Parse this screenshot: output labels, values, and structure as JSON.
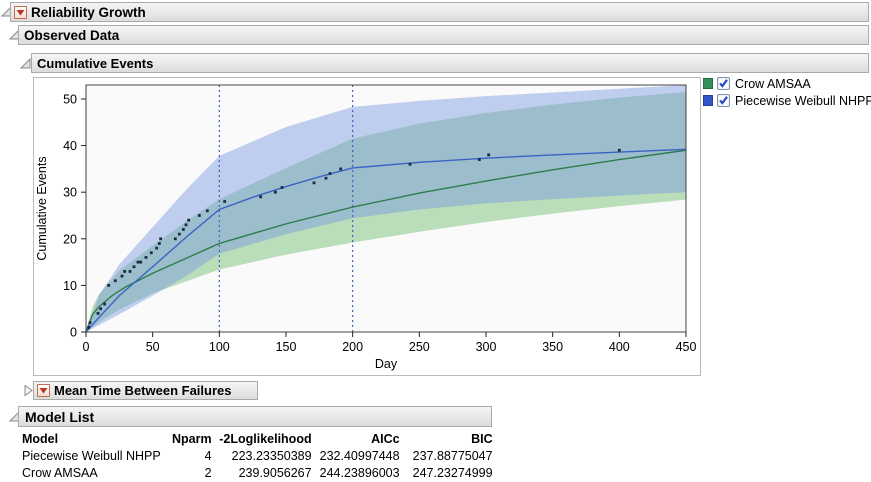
{
  "labels": {
    "reliability_growth": "Reliability Growth",
    "observed_data": "Observed Data",
    "cumulative_events": "Cumulative Events",
    "mtbf": "Mean Time Between Failures",
    "model_list": "Model List"
  },
  "legend": {
    "items": [
      {
        "label": "Crow AMSAA",
        "color": "#33915a",
        "checked": true
      },
      {
        "label": "Piecewise Weibull NHPP",
        "color": "#3355cc",
        "checked": true
      }
    ]
  },
  "chart_data": {
    "type": "line",
    "xlabel": "Day",
    "ylabel": "Cumulative Events",
    "xlim": [
      0,
      450
    ],
    "ylim": [
      0,
      53
    ],
    "xticks": [
      0,
      50,
      100,
      150,
      200,
      250,
      300,
      350,
      400,
      450
    ],
    "yticks": [
      0,
      10,
      20,
      30,
      40,
      50
    ],
    "grid": false,
    "legend_position": "right",
    "phase_change_lines_x": [
      100,
      200
    ],
    "phase_line_color": "#3a62c4",
    "point_color": "#1c2b45",
    "observed_points": [
      [
        2,
        1
      ],
      [
        3,
        2
      ],
      [
        9,
        4
      ],
      [
        11,
        5
      ],
      [
        14,
        6
      ],
      [
        17,
        10
      ],
      [
        22,
        11
      ],
      [
        27,
        12
      ],
      [
        29,
        13
      ],
      [
        33,
        13
      ],
      [
        36,
        14
      ],
      [
        39,
        15
      ],
      [
        41,
        15
      ],
      [
        45,
        16
      ],
      [
        49,
        17
      ],
      [
        53,
        18
      ],
      [
        55,
        19
      ],
      [
        56,
        20
      ],
      [
        67,
        20
      ],
      [
        70,
        21
      ],
      [
        73,
        22
      ],
      [
        75,
        23
      ],
      [
        77,
        24
      ],
      [
        85,
        25
      ],
      [
        91,
        26
      ],
      [
        104,
        28
      ],
      [
        131,
        29
      ],
      [
        142,
        30
      ],
      [
        147,
        31
      ],
      [
        171,
        32
      ],
      [
        180,
        33
      ],
      [
        183,
        34
      ],
      [
        191,
        35
      ],
      [
        243,
        36
      ],
      [
        295,
        37
      ],
      [
        302,
        38
      ],
      [
        400,
        39
      ]
    ],
    "series": [
      {
        "name": "Crow AMSAA",
        "color": "#2e7d4f",
        "band_color": "rgba(98,180,98,0.42)",
        "line": [
          [
            0,
            0
          ],
          [
            5,
            3.8
          ],
          [
            10,
            5.5
          ],
          [
            20,
            7.9
          ],
          [
            30,
            9.7
          ],
          [
            50,
            12.6
          ],
          [
            75,
            15.8
          ],
          [
            100,
            19
          ],
          [
            150,
            23.2
          ],
          [
            200,
            26.8
          ],
          [
            250,
            29.8
          ],
          [
            300,
            32.4
          ],
          [
            350,
            34.8
          ],
          [
            400,
            37
          ],
          [
            450,
            39
          ]
        ],
        "band_upper": [
          [
            0,
            0
          ],
          [
            5,
            5.5
          ],
          [
            10,
            8.2
          ],
          [
            25,
            13.2
          ],
          [
            50,
            18.5
          ],
          [
            75,
            23.7
          ],
          [
            100,
            28.5
          ],
          [
            150,
            35.2
          ],
          [
            200,
            41.5
          ],
          [
            250,
            44.7
          ],
          [
            300,
            47
          ],
          [
            350,
            48.8
          ],
          [
            400,
            50.3
          ],
          [
            450,
            51.5
          ]
        ],
        "band_lower": [
          [
            0,
            0
          ],
          [
            10,
            2.2
          ],
          [
            25,
            4.8
          ],
          [
            50,
            8.3
          ],
          [
            100,
            13.4
          ],
          [
            150,
            16.6
          ],
          [
            200,
            19.2
          ],
          [
            250,
            21.5
          ],
          [
            300,
            23.6
          ],
          [
            350,
            25.4
          ],
          [
            400,
            27
          ],
          [
            450,
            28.4
          ]
        ]
      },
      {
        "name": "Piecewise Weibull NHPP",
        "color": "#3a62c4",
        "band_color": "rgba(120,150,225,0.45)",
        "line": [
          [
            0,
            0
          ],
          [
            10,
            3.2
          ],
          [
            25,
            7.8
          ],
          [
            50,
            14
          ],
          [
            75,
            20.3
          ],
          [
            100,
            26.3
          ],
          [
            125,
            28.9
          ],
          [
            150,
            31.2
          ],
          [
            175,
            33.3
          ],
          [
            200,
            35.2
          ],
          [
            250,
            36.4
          ],
          [
            300,
            37.3
          ],
          [
            350,
            38
          ],
          [
            400,
            38.6
          ],
          [
            450,
            39.2
          ]
        ],
        "band_upper": [
          [
            0,
            0
          ],
          [
            10,
            8
          ],
          [
            25,
            14.5
          ],
          [
            50,
            22.5
          ],
          [
            75,
            30.5
          ],
          [
            100,
            37.8
          ],
          [
            150,
            44
          ],
          [
            200,
            48.3
          ],
          [
            250,
            49.6
          ],
          [
            300,
            50.6
          ],
          [
            350,
            51.4
          ],
          [
            400,
            52.2
          ],
          [
            450,
            53
          ]
        ],
        "band_lower": [
          [
            0,
            0
          ],
          [
            25,
            3.8
          ],
          [
            50,
            7.8
          ],
          [
            75,
            12
          ],
          [
            100,
            16.8
          ],
          [
            150,
            21
          ],
          [
            200,
            24.4
          ],
          [
            250,
            26.3
          ],
          [
            300,
            27.6
          ],
          [
            350,
            28.5
          ],
          [
            400,
            29.3
          ],
          [
            450,
            30
          ]
        ]
      }
    ]
  },
  "model_list": {
    "columns": [
      "Model",
      "Nparm",
      "-2Loglikelihood",
      "AICc",
      "BIC"
    ],
    "rows": [
      {
        "model": "Piecewise Weibull NHPP",
        "nparm": "4",
        "loglik": "223.23350389",
        "aicc": "232.40997448",
        "bic": "237.88775047"
      },
      {
        "model": "Crow AMSAA",
        "nparm": "2",
        "loglik": "239.9056267",
        "aicc": "244.23896003",
        "bic": "247.23274999"
      }
    ]
  },
  "colors": {
    "header_border": "#aaaaaa",
    "plot_frame": "#444444",
    "plot_bg": "#fafafa",
    "accent_red_button": "#b33b22"
  }
}
